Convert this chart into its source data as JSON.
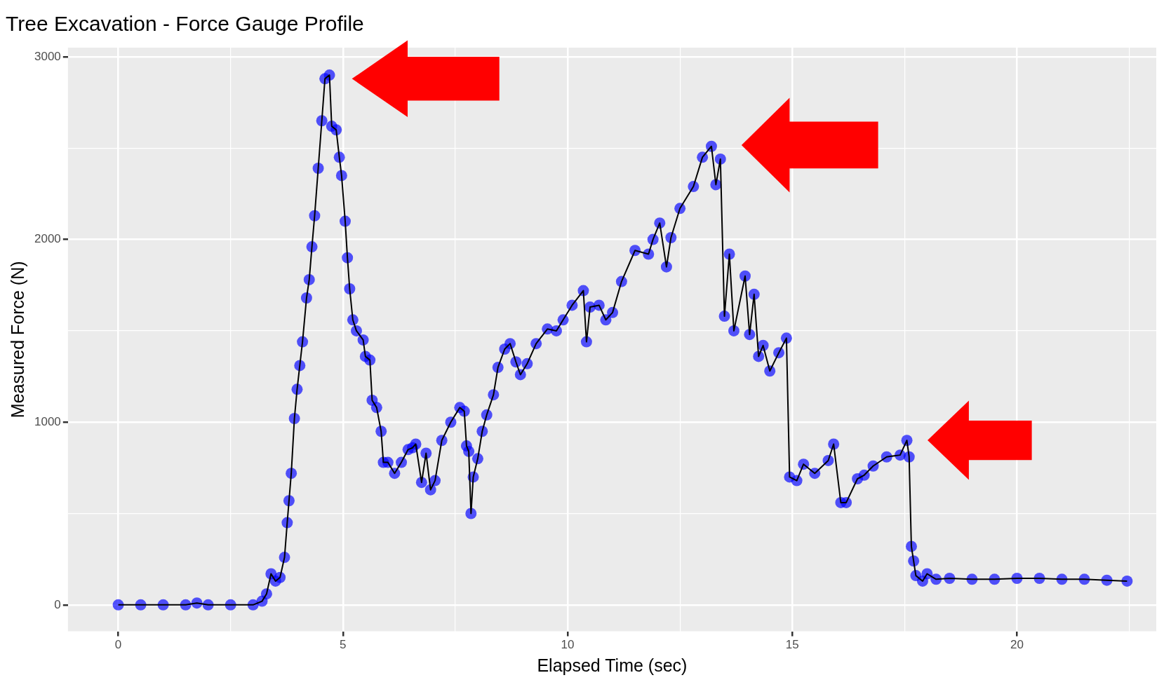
{
  "chart_data": {
    "type": "scatter",
    "title": "Tree Excavation - Force Gauge Profile",
    "xlabel": "Elapsed Time (sec)",
    "ylabel": "Measured Force (N)",
    "xlim": [
      -1.12,
      23.1
    ],
    "ylim": [
      -145,
      3050
    ],
    "xticks": [
      0,
      {
        "value": 2.5,
        "label": null
      },
      5,
      {
        "value": 7.5,
        "label": null
      },
      10,
      {
        "value": 12.5,
        "label": null
      },
      15,
      {
        "value": 17.5,
        "label": null
      },
      20,
      {
        "value": 22.5,
        "label": null
      }
    ],
    "yticks": [
      0,
      {
        "value": 500,
        "label": null
      },
      1000,
      {
        "value": 1500,
        "label": null
      },
      2000,
      {
        "value": 2500,
        "label": null
      },
      3000
    ],
    "grid": true,
    "legend": false,
    "x": [
      0,
      0.5,
      1,
      1.5,
      1.75,
      2,
      2.5,
      3,
      3.2,
      3.3,
      3.4,
      3.5,
      3.6,
      3.7,
      3.76,
      3.8,
      3.85,
      3.92,
      3.98,
      4.04,
      4.1,
      4.19,
      4.25,
      4.31,
      4.37,
      4.45,
      4.53,
      4.6,
      4.7,
      4.75,
      4.85,
      4.92,
      4.97,
      5.05,
      5.1,
      5.15,
      5.22,
      5.3,
      5.45,
      5.5,
      5.6,
      5.65,
      5.75,
      5.85,
      5.9,
      6.0,
      6.15,
      6.3,
      6.45,
      6.55,
      6.62,
      6.75,
      6.85,
      6.95,
      7.05,
      7.2,
      7.4,
      7.6,
      7.7,
      7.75,
      7.8,
      7.85,
      7.9,
      8.0,
      8.1,
      8.2,
      8.35,
      8.45,
      8.6,
      8.72,
      8.85,
      8.95,
      9.1,
      9.3,
      9.55,
      9.75,
      9.9,
      10.1,
      10.35,
      10.42,
      10.5,
      10.7,
      10.85,
      11.0,
      11.2,
      11.5,
      11.8,
      11.9,
      12.05,
      12.2,
      12.3,
      12.5,
      12.8,
      13.0,
      13.2,
      13.3,
      13.4,
      13.49,
      13.6,
      13.7,
      13.95,
      14.05,
      14.15,
      14.25,
      14.35,
      14.5,
      14.7,
      14.87,
      14.94,
      15.1,
      15.25,
      15.5,
      15.8,
      15.92,
      16.08,
      16.2,
      16.45,
      16.6,
      16.8,
      17.1,
      17.4,
      17.55,
      17.6,
      17.65,
      17.7,
      17.75,
      17.9,
      18.0,
      18.2,
      18.5,
      19.0,
      19.5,
      20.0,
      20.5,
      21.0,
      21.5,
      22.0,
      22.45
    ],
    "series": [
      {
        "color": "#0000ff",
        "marker": "circle",
        "values": [
          0,
          0,
          0,
          0,
          10,
          0,
          0,
          0,
          20,
          60,
          170,
          130,
          150,
          260,
          450,
          570,
          720,
          1020,
          1180,
          1310,
          1440,
          1680,
          1780,
          1960,
          2130,
          2390,
          2650,
          2880,
          2900,
          2620,
          2600,
          2450,
          2350,
          2100,
          1900,
          1730,
          1560,
          1500,
          1450,
          1360,
          1340,
          1120,
          1080,
          950,
          780,
          780,
          720,
          780,
          850,
          860,
          880,
          670,
          830,
          630,
          680,
          900,
          1000,
          1080,
          1060,
          870,
          840,
          500,
          700,
          800,
          950,
          1040,
          1150,
          1300,
          1400,
          1430,
          1330,
          1260,
          1320,
          1430,
          1510,
          1500,
          1560,
          1640,
          1720,
          1440,
          1630,
          1640,
          1560,
          1600,
          1770,
          1940,
          1920,
          2000,
          2090,
          1850,
          2010,
          2170,
          2290,
          2450,
          2510,
          2300,
          2440,
          1580,
          1920,
          1500,
          1800,
          1480,
          1700,
          1360,
          1420,
          1280,
          1380,
          1460,
          700,
          680,
          770,
          720,
          790,
          880,
          560,
          560,
          690,
          710,
          760,
          810,
          820,
          900,
          810,
          320,
          240,
          160,
          130,
          170,
          140,
          145,
          140,
          140,
          145,
          145,
          140,
          140,
          135,
          130
        ]
      },
      {
        "type": "line",
        "color": "#000000",
        "line_style": "solid",
        "values": [
          0,
          0,
          0,
          0,
          10,
          0,
          0,
          0,
          20,
          60,
          170,
          130,
          150,
          260,
          450,
          570,
          720,
          1020,
          1180,
          1310,
          1440,
          1680,
          1780,
          1960,
          2130,
          2390,
          2650,
          2880,
          2900,
          2620,
          2600,
          2450,
          2350,
          2100,
          1900,
          1730,
          1560,
          1500,
          1450,
          1360,
          1340,
          1120,
          1080,
          950,
          780,
          780,
          720,
          780,
          850,
          860,
          880,
          670,
          830,
          630,
          680,
          900,
          1000,
          1080,
          1060,
          870,
          840,
          500,
          700,
          800,
          950,
          1040,
          1150,
          1300,
          1400,
          1430,
          1330,
          1260,
          1320,
          1430,
          1510,
          1500,
          1560,
          1640,
          1720,
          1440,
          1630,
          1640,
          1560,
          1600,
          1770,
          1940,
          1920,
          2000,
          2090,
          1850,
          2010,
          2170,
          2290,
          2450,
          2510,
          2300,
          2440,
          1580,
          1920,
          1500,
          1800,
          1480,
          1700,
          1360,
          1420,
          1280,
          1380,
          1460,
          700,
          680,
          770,
          720,
          790,
          880,
          560,
          560,
          690,
          710,
          760,
          810,
          820,
          900,
          810,
          320,
          240,
          160,
          130,
          170,
          140,
          145,
          140,
          140,
          145,
          145,
          140,
          140,
          135,
          130
        ]
      }
    ]
  }
}
